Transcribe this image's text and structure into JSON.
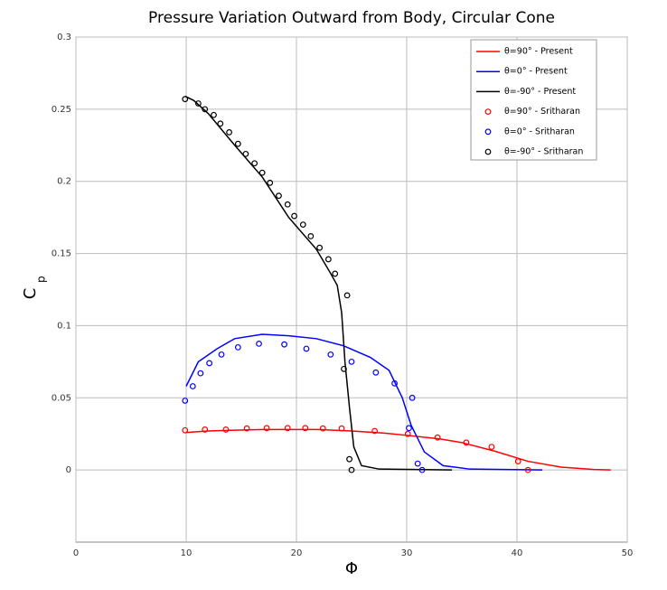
{
  "chart_data": {
    "type": "line",
    "title": "Pressure Variation Outward from Body, Circular Cone",
    "xlabel": "Φ",
    "ylabel": "C",
    "ylabel_subscript": "p",
    "xlim": [
      0,
      50
    ],
    "ylim": [
      -0.05,
      0.3
    ],
    "xticks": [
      0,
      10,
      20,
      30,
      40,
      50
    ],
    "yticks": [
      0,
      0.05,
      0.1,
      0.15,
      0.2,
      0.25,
      0.3
    ],
    "grid": true,
    "legend": "upper right",
    "series": [
      {
        "name": "θ=90° - Present",
        "color": "#ff0000",
        "mode": "line",
        "x": [
          10,
          12,
          14,
          17,
          20,
          22,
          25,
          28,
          30,
          33,
          35,
          38,
          41,
          44,
          47,
          48.5
        ],
        "values": [
          0.026,
          0.027,
          0.0275,
          0.028,
          0.028,
          0.028,
          0.027,
          0.0255,
          0.024,
          0.0215,
          0.019,
          0.013,
          0.006,
          0.002,
          0.0003,
          0
        ]
      },
      {
        "name": "θ=0° - Present",
        "color": "#0000ff",
        "mode": "line",
        "x": [
          10,
          11.1,
          12.8,
          14.4,
          16.9,
          19.3,
          21.8,
          24.3,
          26.7,
          28.4,
          29.6,
          30.4,
          31.6,
          33.3,
          35.7,
          42.3
        ],
        "values": [
          0.058,
          0.075,
          0.084,
          0.091,
          0.094,
          0.093,
          0.091,
          0.086,
          0.078,
          0.069,
          0.05,
          0.031,
          0.0125,
          0.003,
          0.0006,
          0
        ]
      },
      {
        "name": "θ=-90° - Present",
        "color": "#000000",
        "mode": "line",
        "x": [
          9.9,
          10.7,
          12.0,
          14.4,
          16.9,
          19.3,
          21.8,
          23.0,
          23.7,
          24.1,
          24.4,
          24.8,
          25.2,
          25.9,
          27.5,
          34.1
        ],
        "values": [
          0.259,
          0.256,
          0.247,
          0.225,
          0.203,
          0.175,
          0.153,
          0.1375,
          0.128,
          0.109,
          0.075,
          0.044,
          0.016,
          0.003,
          0.0006,
          0
        ]
      },
      {
        "name": "θ=90° - Sritharan",
        "color": "#ff0000",
        "mode": "markers",
        "x": [
          9.9,
          11.7,
          13.6,
          15.5,
          17.3,
          19.2,
          20.8,
          22.4,
          24.1,
          27.1,
          30.1,
          32.8,
          35.4,
          37.7,
          40.1,
          41.0
        ],
        "values": [
          0.0275,
          0.028,
          0.028,
          0.0288,
          0.029,
          0.029,
          0.029,
          0.0288,
          0.0288,
          0.027,
          0.025,
          0.0225,
          0.019,
          0.016,
          0.006,
          0
        ]
      },
      {
        "name": "θ=0° - Sritharan",
        "color": "#0000ff",
        "mode": "markers",
        "x": [
          9.9,
          10.6,
          11.3,
          12.1,
          13.2,
          14.7,
          16.6,
          18.9,
          20.9,
          23.1,
          25.0,
          27.2,
          28.9,
          30.5,
          30.2,
          31.0,
          31.4
        ],
        "values": [
          0.048,
          0.058,
          0.067,
          0.074,
          0.08,
          0.085,
          0.0875,
          0.087,
          0.084,
          0.08,
          0.075,
          0.0675,
          0.06,
          0.05,
          0.029,
          0.0044,
          0
        ]
      },
      {
        "name": "θ=-90° - Sritharan",
        "color": "#000000",
        "mode": "markers",
        "x": [
          9.9,
          11.1,
          11.7,
          12.5,
          13.1,
          13.9,
          14.7,
          15.4,
          16.2,
          16.9,
          17.6,
          18.4,
          19.2,
          19.8,
          20.6,
          21.3,
          22.1,
          22.9,
          23.5,
          24.6,
          24.3,
          24.8,
          25.0
        ],
        "values": [
          0.257,
          0.254,
          0.25,
          0.246,
          0.24,
          0.234,
          0.226,
          0.219,
          0.2125,
          0.206,
          0.199,
          0.19,
          0.184,
          0.176,
          0.17,
          0.162,
          0.154,
          0.146,
          0.136,
          0.121,
          0.07,
          0.0075,
          0
        ]
      }
    ]
  }
}
